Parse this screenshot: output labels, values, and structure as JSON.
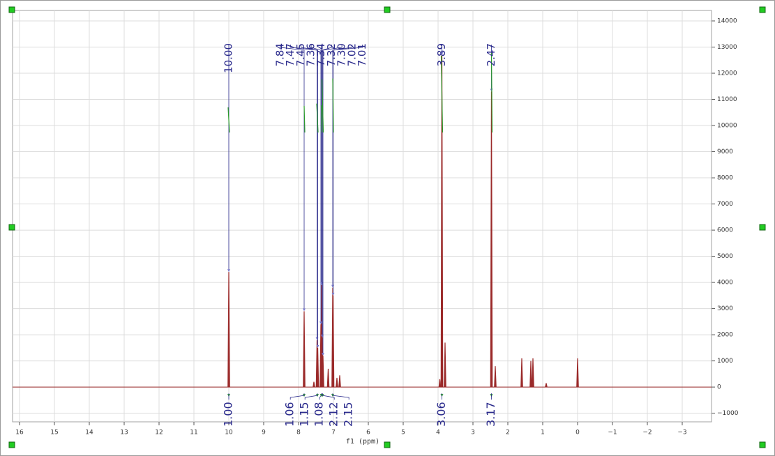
{
  "chart_data": {
    "type": "nmr",
    "x_label": "f1 (ppm)",
    "xlim": [
      16.2,
      -3.84
    ],
    "xticks": [
      16,
      15,
      14,
      13,
      12,
      11,
      10,
      9,
      8,
      7,
      6,
      5,
      4,
      3,
      2,
      1,
      0,
      {
        "value": -1,
        "label": "−1"
      },
      {
        "value": -2,
        "label": "−2"
      },
      {
        "value": -3,
        "label": "−3"
      }
    ],
    "ylim": [
      -1330,
      14400
    ],
    "yticks": [
      {
        "value": -1000,
        "label": "−1000"
      },
      0,
      1000,
      2000,
      3000,
      4000,
      5000,
      6000,
      7000,
      8000,
      9000,
      10000,
      11000,
      12000,
      13000,
      14000
    ],
    "grid": true,
    "color": "#9b2a2a",
    "peaks": {
      "x": [
        10.0,
        7.84,
        7.56,
        7.47,
        7.45,
        7.36,
        7.34,
        7.32,
        7.3,
        7.15,
        7.02,
        7.01,
        6.9,
        6.82,
        3.95,
        3.89,
        3.8,
        2.47,
        2.36,
        1.6,
        1.34,
        1.28,
        0.9,
        0.0
      ],
      "values": [
        4400,
        2900,
        200,
        1800,
        1500,
        2400,
        3900,
        1900,
        1200,
        700,
        3800,
        3500,
        350,
        450,
        300,
        12700,
        1700,
        11300,
        800,
        1100,
        1000,
        1100,
        150,
        1100
      ],
      "labels": [
        "10.00",
        "7.84",
        null,
        "7.47",
        "7.45",
        "7.36",
        "7.34",
        "7.32",
        "7.30",
        null,
        "7.02",
        "7.01",
        null,
        null,
        null,
        "3.89",
        null,
        "2.47",
        null,
        null,
        null,
        null,
        null,
        null
      ]
    },
    "integrals": {
      "x": [
        10.0,
        7.84,
        7.46,
        7.35,
        7.31,
        7.02,
        3.89,
        2.47
      ],
      "values": [
        1.0,
        1.06,
        1.15,
        1.08,
        2.12,
        2.15,
        3.06,
        3.17
      ],
      "labels": [
        "1.00",
        "1.06",
        "1.15",
        "1.08",
        "2.12",
        "2.15",
        "3.06",
        "3.17"
      ]
    }
  }
}
